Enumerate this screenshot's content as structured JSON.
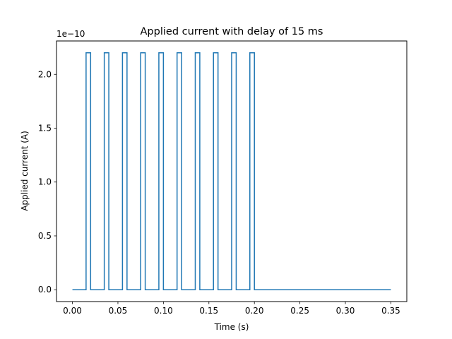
{
  "chart_data": {
    "type": "line",
    "title": "Applied current with delay of 15 ms",
    "xlabel": "Time (s)",
    "ylabel": "Applied current (A)",
    "offset_label": "1e−10",
    "xlim": [
      -0.0175,
      0.3675
    ],
    "ylim": [
      -0.11,
      2.31
    ],
    "x_ticks": [
      0.0,
      0.05,
      0.1,
      0.15,
      0.2,
      0.25,
      0.3,
      0.35
    ],
    "x_tick_labels": [
      "0.00",
      "0.05",
      "0.10",
      "0.15",
      "0.20",
      "0.25",
      "0.30",
      "0.35"
    ],
    "y_ticks": [
      0.0,
      0.5,
      1.0,
      1.5,
      2.0
    ],
    "y_tick_labels": [
      "0.0",
      "0.5",
      "1.0",
      "1.5",
      "2.0"
    ],
    "grid": false,
    "series": [
      {
        "color": "#1f77b4",
        "pulse_amplitude": 2.2,
        "pulse_starts": [
          0.015,
          0.035,
          0.055,
          0.075,
          0.095,
          0.115,
          0.135,
          0.155,
          0.175,
          0.195
        ],
        "pulse_width": 0.005,
        "x_start": 0.0,
        "x_end": 0.35
      }
    ]
  }
}
